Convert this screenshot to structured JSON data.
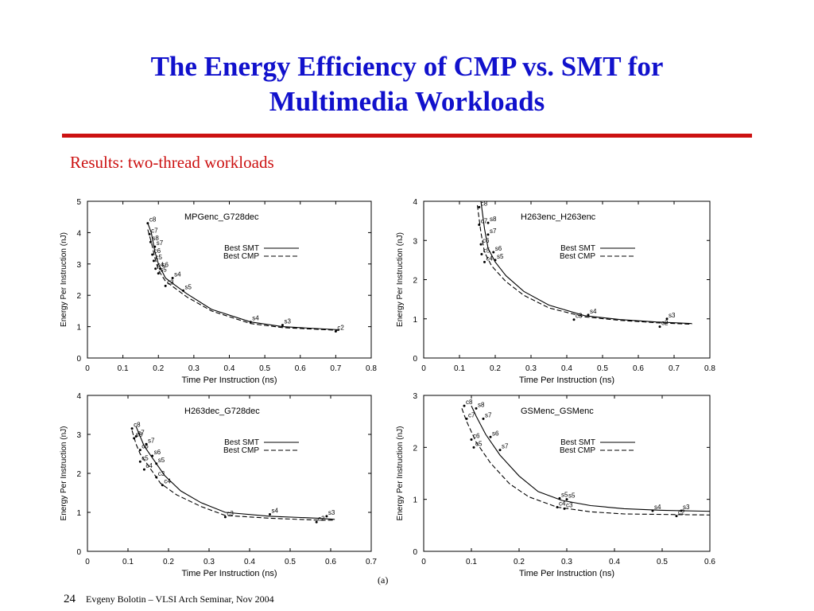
{
  "slide": {
    "title_line1": "The Energy Efficiency of CMP vs. SMT for",
    "title_line2": "Multimedia Workloads",
    "subtitle": "Results: two-thread workloads",
    "figure_label": "(a)",
    "page_number": "24",
    "footer": "Evgeny Bolotin – VLSI Arch Seminar, Nov 2004",
    "title_color": "#1111cc",
    "accent_color": "#cc1111"
  },
  "chart_data": [
    {
      "type": "line",
      "title": "MPGenc_G728dec",
      "xlabel": "Time Per Instruction (ns)",
      "ylabel": "Energy Per Instruction (nJ)",
      "xlim": [
        0,
        0.8
      ],
      "ylim": [
        0,
        5
      ],
      "xticks": [
        "0",
        "0.1",
        "0.2",
        "0.3",
        "0.4",
        "0.5",
        "0.6",
        "0.7",
        "0.8"
      ],
      "yticks": [
        "0",
        "1",
        "2",
        "3",
        "4",
        "5"
      ],
      "legend": [
        "Best SMT",
        "Best CMP"
      ],
      "legend_position": "right",
      "series": [
        {
          "name": "Best SMT",
          "style": "solid",
          "x": [
            0.17,
            0.18,
            0.19,
            0.2,
            0.22,
            0.25,
            0.28,
            0.35,
            0.46,
            0.55,
            0.71
          ],
          "y": [
            4.3,
            4.0,
            3.4,
            3.0,
            2.55,
            2.3,
            2.05,
            1.55,
            1.15,
            1.0,
            0.9
          ]
        },
        {
          "name": "Best CMP",
          "style": "dashed",
          "x": [
            0.17,
            0.18,
            0.19,
            0.2,
            0.22,
            0.25,
            0.28,
            0.35,
            0.46,
            0.55,
            0.71
          ],
          "y": [
            4.1,
            3.7,
            3.2,
            2.8,
            2.45,
            2.2,
            1.95,
            1.5,
            1.1,
            0.97,
            0.88
          ]
        }
      ],
      "points": [
        {
          "label": "c8",
          "x": 0.17,
          "y": 4.3
        },
        {
          "label": "c7",
          "x": 0.175,
          "y": 3.95
        },
        {
          "label": "s8",
          "x": 0.178,
          "y": 3.7
        },
        {
          "label": "s7",
          "x": 0.19,
          "y": 3.55
        },
        {
          "label": "c6",
          "x": 0.183,
          "y": 3.3
        },
        {
          "label": "c5",
          "x": 0.187,
          "y": 3.1
        },
        {
          "label": "s6",
          "x": 0.205,
          "y": 2.85
        },
        {
          "label": "c4",
          "x": 0.192,
          "y": 2.85
        },
        {
          "label": "s5",
          "x": 0.2,
          "y": 2.7
        },
        {
          "label": "s4",
          "x": 0.24,
          "y": 2.55
        },
        {
          "label": "c3",
          "x": 0.22,
          "y": 2.3
        },
        {
          "label": "s5",
          "x": 0.27,
          "y": 2.15
        },
        {
          "label": "s4",
          "x": 0.46,
          "y": 1.15
        },
        {
          "label": "s3",
          "x": 0.55,
          "y": 1.05
        },
        {
          "label": "c2",
          "x": 0.7,
          "y": 0.85
        }
      ]
    },
    {
      "type": "line",
      "title": "H263enc_H263enc",
      "xlabel": "Time Per Instruction (ns)",
      "ylabel": "Energy Per Instruction (nJ)",
      "xlim": [
        0,
        0.8
      ],
      "ylim": [
        0,
        4
      ],
      "xticks": [
        "0",
        "0.1",
        "0.2",
        "0.3",
        "0.4",
        "0.5",
        "0.6",
        "0.7",
        "0.8"
      ],
      "yticks": [
        "0",
        "1",
        "2",
        "3",
        "4"
      ],
      "legend": [
        "Best SMT",
        "Best CMP"
      ],
      "legend_position": "right",
      "series": [
        {
          "name": "Best SMT",
          "style": "solid",
          "x": [
            0.16,
            0.17,
            0.18,
            0.2,
            0.23,
            0.28,
            0.35,
            0.45,
            0.55,
            0.65,
            0.75
          ],
          "y": [
            4.0,
            3.3,
            2.8,
            2.45,
            2.1,
            1.7,
            1.35,
            1.08,
            0.98,
            0.92,
            0.88
          ]
        },
        {
          "name": "Best CMP",
          "style": "dashed",
          "x": [
            0.15,
            0.16,
            0.17,
            0.19,
            0.23,
            0.28,
            0.35,
            0.45,
            0.55,
            0.65,
            0.75
          ],
          "y": [
            3.9,
            3.2,
            2.7,
            2.35,
            1.95,
            1.6,
            1.28,
            1.05,
            0.96,
            0.9,
            0.86
          ]
        }
      ],
      "points": [
        {
          "label": "c8",
          "x": 0.155,
          "y": 3.85
        },
        {
          "label": "s8",
          "x": 0.18,
          "y": 3.45
        },
        {
          "label": "c7",
          "x": 0.155,
          "y": 3.4
        },
        {
          "label": "s7",
          "x": 0.18,
          "y": 3.15
        },
        {
          "label": "c6",
          "x": 0.16,
          "y": 2.9
        },
        {
          "label": "s6",
          "x": 0.195,
          "y": 2.7
        },
        {
          "label": "c5",
          "x": 0.162,
          "y": 2.65
        },
        {
          "label": "s5",
          "x": 0.2,
          "y": 2.5
        },
        {
          "label": "c4",
          "x": 0.17,
          "y": 2.45
        },
        {
          "label": "s4",
          "x": 0.46,
          "y": 1.1
        },
        {
          "label": "c3",
          "x": 0.42,
          "y": 0.98
        },
        {
          "label": "s3",
          "x": 0.68,
          "y": 1.0
        },
        {
          "label": "c2",
          "x": 0.66,
          "y": 0.8
        }
      ]
    },
    {
      "type": "line",
      "title": "H263dec_G728dec",
      "xlabel": "Time Per Instruction (ns)",
      "ylabel": "Energy Per Instruction (nJ)",
      "xlim": [
        0,
        0.7
      ],
      "ylim": [
        0,
        4
      ],
      "xticks": [
        "0",
        "0.1",
        "0.2",
        "0.3",
        "0.4",
        "0.5",
        "0.6",
        "0.7"
      ],
      "yticks": [
        "0",
        "1",
        "2",
        "3",
        "4"
      ],
      "legend": [
        "Best SMT",
        "Best CMP"
      ],
      "legend_position": "right",
      "series": [
        {
          "name": "Best SMT",
          "style": "solid",
          "x": [
            0.12,
            0.13,
            0.14,
            0.16,
            0.19,
            0.23,
            0.28,
            0.34,
            0.45,
            0.57,
            0.61
          ],
          "y": [
            3.2,
            2.95,
            2.7,
            2.4,
            1.95,
            1.55,
            1.25,
            1.0,
            0.9,
            0.85,
            0.82
          ]
        },
        {
          "name": "Best CMP",
          "style": "dashed",
          "x": [
            0.11,
            0.12,
            0.13,
            0.15,
            0.18,
            0.22,
            0.28,
            0.34,
            0.45,
            0.57,
            0.61
          ],
          "y": [
            3.1,
            2.75,
            2.5,
            2.2,
            1.75,
            1.45,
            1.15,
            0.92,
            0.85,
            0.8,
            0.8
          ]
        }
      ],
      "points": [
        {
          "label": "c8",
          "x": 0.11,
          "y": 3.15
        },
        {
          "label": "s8",
          "x": 0.115,
          "y": 2.9
        },
        {
          "label": "c7",
          "x": 0.12,
          "y": 2.95
        },
        {
          "label": "s7",
          "x": 0.145,
          "y": 2.75
        },
        {
          "label": "c6",
          "x": 0.13,
          "y": 2.6
        },
        {
          "label": "s6",
          "x": 0.16,
          "y": 2.45
        },
        {
          "label": "c5",
          "x": 0.13,
          "y": 2.3
        },
        {
          "label": "s5",
          "x": 0.17,
          "y": 2.25
        },
        {
          "label": "c4",
          "x": 0.14,
          "y": 2.1
        },
        {
          "label": "c3",
          "x": 0.17,
          "y": 1.9
        },
        {
          "label": "c4",
          "x": 0.185,
          "y": 1.7
        },
        {
          "label": "s4",
          "x": 0.45,
          "y": 0.95
        },
        {
          "label": "c3",
          "x": 0.34,
          "y": 0.88
        },
        {
          "label": "s3",
          "x": 0.59,
          "y": 0.9
        },
        {
          "label": "c2",
          "x": 0.565,
          "y": 0.75
        }
      ]
    },
    {
      "type": "line",
      "title": "GSMenc_GSMenc",
      "xlabel": "Time Per Instruction (ns)",
      "ylabel": "Energy Per Instruction (nJ)",
      "xlim": [
        0,
        0.6
      ],
      "ylim": [
        0,
        3
      ],
      "xticks": [
        "0",
        "0.1",
        "0.2",
        "0.3",
        "0.4",
        "0.5",
        "0.6"
      ],
      "yticks": [
        "0",
        "1",
        "2",
        "3"
      ],
      "legend": [
        "Best SMT",
        "Best CMP"
      ],
      "legend_position": "right",
      "series": [
        {
          "name": "Best SMT",
          "style": "solid",
          "x": [
            0.1,
            0.11,
            0.13,
            0.16,
            0.2,
            0.24,
            0.29,
            0.35,
            0.42,
            0.5,
            0.6
          ],
          "y": [
            2.8,
            2.6,
            2.25,
            1.85,
            1.45,
            1.15,
            0.98,
            0.88,
            0.82,
            0.79,
            0.77
          ]
        },
        {
          "name": "Best CMP",
          "style": "dashed",
          "x": [
            0.08,
            0.09,
            0.11,
            0.14,
            0.18,
            0.22,
            0.28,
            0.35,
            0.42,
            0.5,
            0.6
          ],
          "y": [
            2.75,
            2.5,
            2.1,
            1.7,
            1.3,
            1.05,
            0.85,
            0.76,
            0.72,
            0.71,
            0.7
          ]
        }
      ],
      "points": [
        {
          "label": "c8",
          "x": 0.085,
          "y": 2.8
        },
        {
          "label": "s8",
          "x": 0.11,
          "y": 2.75
        },
        {
          "label": "c7",
          "x": 0.09,
          "y": 2.55
        },
        {
          "label": "s7",
          "x": 0.125,
          "y": 2.55
        },
        {
          "label": "c6",
          "x": 0.1,
          "y": 2.15
        },
        {
          "label": "s6",
          "x": 0.14,
          "y": 2.2
        },
        {
          "label": "c5",
          "x": 0.105,
          "y": 2.0
        },
        {
          "label": "s7",
          "x": 0.16,
          "y": 1.95
        },
        {
          "label": "s5",
          "x": 0.285,
          "y": 1.02
        },
        {
          "label": "s5",
          "x": 0.3,
          "y": 1.0
        },
        {
          "label": "c4",
          "x": 0.28,
          "y": 0.85
        },
        {
          "label": "c3",
          "x": 0.295,
          "y": 0.82
        },
        {
          "label": "s4",
          "x": 0.48,
          "y": 0.78
        },
        {
          "label": "s3",
          "x": 0.54,
          "y": 0.78
        },
        {
          "label": "c2",
          "x": 0.53,
          "y": 0.68
        }
      ]
    }
  ]
}
